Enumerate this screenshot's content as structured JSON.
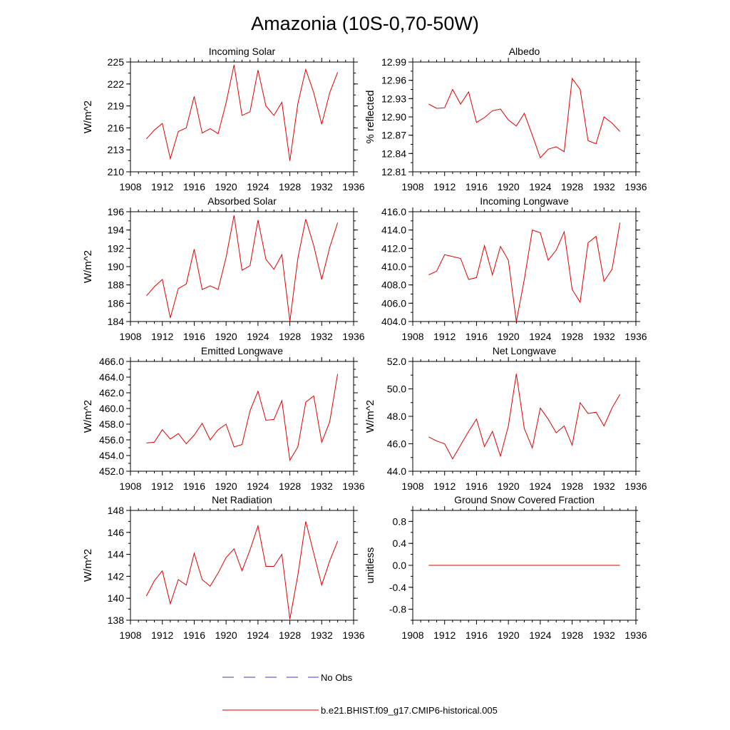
{
  "figure": {
    "title": "Amazonia (10S-0,70-50W)"
  },
  "legend": {
    "entries": [
      {
        "label": "No Obs",
        "color": "#3b3bc4",
        "style": "dashed"
      },
      {
        "label": "b.e21.BHIST.f09_g17.CMIP6-historical.005",
        "color": "#e00000",
        "style": "solid"
      }
    ]
  },
  "colors": {
    "series": "#e00000",
    "axis": "#000000"
  },
  "chart_data": [
    {
      "type": "line",
      "title": "Incoming Solar",
      "ylabel": "W/m^2",
      "xlim": [
        1908,
        1936
      ],
      "ylim": [
        210,
        225
      ],
      "xticks": [
        "1908",
        "1912",
        "1916",
        "1920",
        "1924",
        "1928",
        "1932",
        "1936"
      ],
      "yticks": [
        "210",
        "213",
        "216",
        "219",
        "222",
        "225"
      ],
      "x": [
        1910,
        1911,
        1912,
        1913,
        1914,
        1915,
        1916,
        1917,
        1918,
        1919,
        1920,
        1921,
        1922,
        1923,
        1924,
        1925,
        1926,
        1927,
        1928,
        1929,
        1930,
        1931,
        1932,
        1933,
        1934
      ],
      "series": [
        {
          "values": [
            214.5,
            215.7,
            216.6,
            211.8,
            215.5,
            216.0,
            220.3,
            215.3,
            215.9,
            215.2,
            219.4,
            224.6,
            217.7,
            218.2,
            223.9,
            219.0,
            217.7,
            219.5,
            211.5,
            219.3,
            224.0,
            220.8,
            216.5,
            220.8,
            223.6
          ]
        }
      ]
    },
    {
      "type": "line",
      "title": "Albedo",
      "ylabel": "% reflected",
      "xlim": [
        1908,
        1936
      ],
      "ylim": [
        12.81,
        12.99
      ],
      "xticks": [
        "1908",
        "1912",
        "1916",
        "1920",
        "1924",
        "1928",
        "1932",
        "1936"
      ],
      "yticks": [
        "12.81",
        "12.84",
        "12.87",
        "12.90",
        "12.93",
        "12.96",
        "12.99"
      ],
      "x": [
        1910,
        1911,
        1912,
        1913,
        1914,
        1915,
        1916,
        1917,
        1918,
        1919,
        1920,
        1921,
        1922,
        1923,
        1924,
        1925,
        1926,
        1927,
        1928,
        1929,
        1930,
        1931,
        1932,
        1933,
        1934
      ],
      "series": [
        {
          "values": [
            12.921,
            12.914,
            12.915,
            12.945,
            12.921,
            12.941,
            12.891,
            12.899,
            12.91,
            12.913,
            12.895,
            12.885,
            12.906,
            12.87,
            12.833,
            12.847,
            12.851,
            12.843,
            12.963,
            12.945,
            12.861,
            12.856,
            12.9,
            12.89,
            12.876
          ]
        }
      ]
    },
    {
      "type": "line",
      "title": "Absorbed Solar",
      "ylabel": "W/m^2",
      "xlim": [
        1908,
        1936
      ],
      "ylim": [
        184,
        196
      ],
      "xticks": [
        "1908",
        "1912",
        "1916",
        "1920",
        "1924",
        "1928",
        "1932",
        "1936"
      ],
      "yticks": [
        "184",
        "186",
        "188",
        "190",
        "192",
        "194",
        "196"
      ],
      "x": [
        1910,
        1911,
        1912,
        1913,
        1914,
        1915,
        1916,
        1917,
        1918,
        1919,
        1920,
        1921,
        1922,
        1923,
        1924,
        1925,
        1926,
        1927,
        1928,
        1929,
        1930,
        1931,
        1932,
        1933,
        1934
      ],
      "series": [
        {
          "values": [
            186.8,
            187.8,
            188.6,
            184.4,
            187.6,
            188.1,
            191.9,
            187.5,
            187.9,
            187.5,
            191.0,
            195.6,
            189.6,
            190.1,
            195.1,
            190.8,
            189.7,
            191.3,
            184.0,
            190.9,
            195.2,
            192.3,
            188.6,
            192.1,
            194.8
          ]
        }
      ]
    },
    {
      "type": "line",
      "title": "Incoming Longwave",
      "ylabel": "",
      "xlim": [
        1908,
        1936
      ],
      "ylim": [
        404.0,
        416.0
      ],
      "xticks": [
        "1908",
        "1912",
        "1916",
        "1920",
        "1924",
        "1928",
        "1932",
        "1936"
      ],
      "yticks": [
        "404.0",
        "406.0",
        "408.0",
        "410.0",
        "412.0",
        "414.0",
        "416.0"
      ],
      "x": [
        1910,
        1911,
        1912,
        1913,
        1914,
        1915,
        1916,
        1917,
        1918,
        1919,
        1920,
        1921,
        1922,
        1923,
        1924,
        1925,
        1926,
        1927,
        1928,
        1929,
        1930,
        1931,
        1932,
        1933,
        1934
      ],
      "series": [
        {
          "values": [
            409.1,
            409.5,
            411.3,
            411.1,
            410.9,
            408.6,
            408.8,
            412.3,
            409.1,
            412.2,
            410.7,
            404.0,
            408.6,
            414.0,
            413.7,
            410.7,
            411.8,
            413.8,
            407.5,
            406.1,
            412.6,
            413.3,
            408.4,
            409.7,
            414.8
          ]
        }
      ]
    },
    {
      "type": "line",
      "title": "Emitted Longwave",
      "ylabel": "W/m^2",
      "xlim": [
        1908,
        1936
      ],
      "ylim": [
        452.0,
        466.0
      ],
      "xticks": [
        "1908",
        "1912",
        "1916",
        "1920",
        "1924",
        "1928",
        "1932",
        "1936"
      ],
      "yticks": [
        "452.0",
        "454.0",
        "456.0",
        "458.0",
        "460.0",
        "462.0",
        "464.0",
        "466.0"
      ],
      "x": [
        1910,
        1911,
        1912,
        1913,
        1914,
        1915,
        1916,
        1917,
        1918,
        1919,
        1920,
        1921,
        1922,
        1923,
        1924,
        1925,
        1926,
        1927,
        1928,
        1929,
        1930,
        1931,
        1932,
        1933,
        1934
      ],
      "series": [
        {
          "values": [
            455.6,
            455.7,
            457.3,
            456.1,
            456.8,
            455.5,
            456.6,
            458.1,
            456.0,
            457.3,
            458.0,
            455.1,
            455.4,
            459.7,
            462.2,
            458.5,
            458.6,
            461.0,
            453.4,
            455.1,
            460.8,
            461.6,
            455.7,
            458.3,
            464.4
          ]
        }
      ]
    },
    {
      "type": "line",
      "title": "Net Longwave",
      "ylabel": "W/m^2",
      "xlim": [
        1908,
        1936
      ],
      "ylim": [
        44.0,
        52.0
      ],
      "xticks": [
        "1908",
        "1912",
        "1916",
        "1920",
        "1924",
        "1928",
        "1932",
        "1936"
      ],
      "yticks": [
        "44.0",
        "46.0",
        "48.0",
        "50.0",
        "52.0"
      ],
      "x": [
        1910,
        1911,
        1912,
        1913,
        1914,
        1915,
        1916,
        1917,
        1918,
        1919,
        1920,
        1921,
        1922,
        1923,
        1924,
        1925,
        1926,
        1927,
        1928,
        1929,
        1930,
        1931,
        1932,
        1933,
        1934
      ],
      "series": [
        {
          "values": [
            46.5,
            46.2,
            46.0,
            44.9,
            45.9,
            46.9,
            47.8,
            45.8,
            46.9,
            45.1,
            47.3,
            51.1,
            47.1,
            45.7,
            48.6,
            47.8,
            46.8,
            47.3,
            45.9,
            49.0,
            48.2,
            48.3,
            47.3,
            48.6,
            49.6
          ]
        }
      ]
    },
    {
      "type": "line",
      "title": "Net Radiation",
      "ylabel": "W/m^2",
      "xlim": [
        1908,
        1936
      ],
      "ylim": [
        138,
        148
      ],
      "xticks": [
        "1908",
        "1912",
        "1916",
        "1920",
        "1924",
        "1928",
        "1932",
        "1936"
      ],
      "yticks": [
        "138",
        "140",
        "142",
        "144",
        "146",
        "148"
      ],
      "x": [
        1910,
        1911,
        1912,
        1913,
        1914,
        1915,
        1916,
        1917,
        1918,
        1919,
        1920,
        1921,
        1922,
        1923,
        1924,
        1925,
        1926,
        1927,
        1928,
        1929,
        1930,
        1931,
        1932,
        1933,
        1934
      ],
      "series": [
        {
          "values": [
            140.2,
            141.6,
            142.5,
            139.5,
            141.7,
            141.2,
            144.1,
            141.7,
            141.1,
            142.3,
            143.7,
            144.5,
            142.5,
            144.4,
            146.6,
            142.9,
            142.9,
            144.0,
            138.1,
            142.1,
            147.0,
            144.1,
            141.2,
            143.4,
            145.2
          ]
        }
      ]
    },
    {
      "type": "line",
      "title": "Ground Snow Covered Fraction",
      "ylabel": "unitless",
      "xlim": [
        1908,
        1936
      ],
      "ylim": [
        -1.0,
        1.0
      ],
      "xticks": [
        "1908",
        "1912",
        "1916",
        "1920",
        "1924",
        "1928",
        "1932",
        "1936"
      ],
      "yticks": [
        "-0.8",
        "-0.4",
        "0.0",
        "0.4",
        "0.8"
      ],
      "ytick_values": [
        -0.8,
        -0.4,
        0.0,
        0.4,
        0.8
      ],
      "x": [
        1910,
        1934
      ],
      "series": [
        {
          "values": [
            0.0,
            0.0
          ]
        }
      ]
    }
  ]
}
